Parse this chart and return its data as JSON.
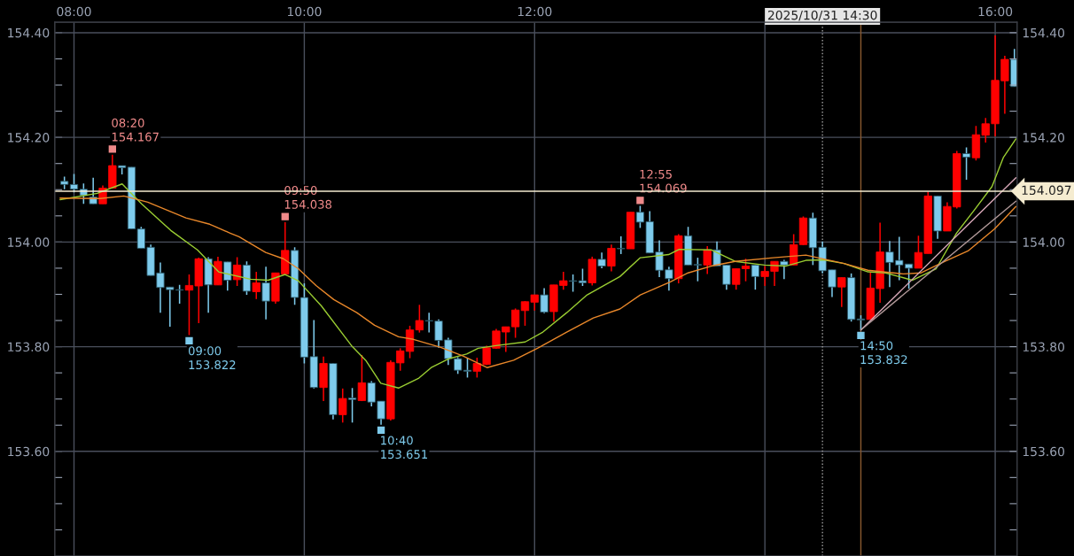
{
  "chart_data": {
    "type": "candlestick",
    "x": [
      7.9167,
      8,
      8.0833,
      8.1667,
      8.25,
      8.3333,
      8.4167,
      8.5,
      8.5833,
      8.6667,
      8.75,
      8.8333,
      8.9167,
      9,
      9.0833,
      9.1667,
      9.25,
      9.3333,
      9.4167,
      9.5,
      9.5833,
      9.6667,
      9.75,
      9.8333,
      9.9167,
      10,
      10.0833,
      10.1667,
      10.25,
      10.3333,
      10.4167,
      10.5,
      10.5833,
      10.6667,
      10.75,
      10.8333,
      10.9167,
      11,
      11.0833,
      11.1667,
      11.25,
      11.3333,
      11.4167,
      11.5,
      11.5833,
      11.6667,
      11.75,
      11.8333,
      11.9167,
      12,
      12.0833,
      12.1667,
      12.25,
      12.3333,
      12.4167,
      12.5,
      12.5833,
      12.6667,
      12.75,
      12.8333,
      12.9167,
      13,
      13.0833,
      13.1667,
      13.25,
      13.3333,
      13.4167,
      13.5,
      13.5833,
      13.6667,
      13.75,
      13.8333,
      13.9167,
      14,
      14.0833,
      14.1667,
      14.25,
      14.3333,
      14.4167,
      14.5,
      14.5833,
      14.6667,
      14.75,
      14.8333,
      14.9167,
      15,
      15.0833,
      15.1667,
      15.25,
      15.3333,
      15.4167,
      15.5,
      15.5833,
      15.6667,
      15.75,
      15.8333,
      15.9167,
      16,
      16.0833,
      16.1667
    ],
    "ohlc": [
      [
        154.116,
        154.125,
        154.101,
        154.11
      ],
      [
        154.11,
        154.13,
        154.095,
        154.101
      ],
      [
        154.101,
        154.112,
        154.073,
        154.089
      ],
      [
        154.086,
        154.123,
        154.073,
        154.073
      ],
      [
        154.073,
        154.108,
        154.073,
        154.103
      ],
      [
        154.103,
        154.167,
        154.103,
        154.146
      ],
      [
        154.146,
        154.146,
        154.129,
        154.142
      ],
      [
        154.143,
        154.143,
        154.025,
        154.025
      ],
      [
        154.025,
        154.029,
        153.988,
        153.988
      ],
      [
        153.99,
        153.995,
        153.936,
        153.936
      ],
      [
        153.941,
        153.961,
        153.865,
        153.913
      ],
      [
        153.914,
        153.914,
        153.838,
        153.909
      ],
      [
        153.909,
        153.918,
        153.882,
        153.908
      ],
      [
        153.908,
        153.938,
        153.822,
        153.917
      ],
      [
        153.916,
        153.97,
        153.845,
        153.968
      ],
      [
        153.968,
        153.971,
        153.865,
        153.918
      ],
      [
        153.918,
        153.972,
        153.918,
        153.963
      ],
      [
        153.962,
        153.962,
        153.907,
        153.927
      ],
      [
        153.928,
        153.971,
        153.916,
        153.956
      ],
      [
        153.956,
        153.963,
        153.899,
        153.906
      ],
      [
        153.905,
        153.943,
        153.891,
        153.922
      ],
      [
        153.922,
        153.953,
        153.852,
        153.887
      ],
      [
        153.887,
        153.941,
        153.882,
        153.941
      ],
      [
        153.939,
        154.038,
        153.939,
        153.984
      ],
      [
        153.984,
        153.99,
        153.88,
        153.894
      ],
      [
        153.894,
        153.921,
        153.768,
        153.78
      ],
      [
        153.781,
        153.851,
        153.72,
        153.722
      ],
      [
        153.722,
        153.781,
        153.696,
        153.768
      ],
      [
        153.768,
        153.769,
        153.661,
        153.67
      ],
      [
        153.67,
        153.72,
        153.655,
        153.701
      ],
      [
        153.702,
        153.721,
        153.655,
        153.699
      ],
      [
        153.697,
        153.784,
        153.696,
        153.731
      ],
      [
        153.731,
        153.734,
        153.686,
        153.694
      ],
      [
        153.696,
        153.696,
        153.651,
        153.662
      ],
      [
        153.662,
        153.774,
        153.659,
        153.77
      ],
      [
        153.769,
        153.797,
        153.754,
        153.792
      ],
      [
        153.791,
        153.84,
        153.778,
        153.832
      ],
      [
        153.832,
        153.88,
        153.827,
        153.85
      ],
      [
        153.85,
        153.865,
        153.827,
        153.849
      ],
      [
        153.849,
        153.852,
        153.798,
        153.812
      ],
      [
        153.813,
        153.817,
        153.765,
        153.777
      ],
      [
        153.777,
        153.78,
        153.748,
        153.755
      ],
      [
        153.755,
        153.779,
        153.741,
        153.753
      ],
      [
        153.753,
        153.779,
        153.741,
        153.768
      ],
      [
        153.766,
        153.802,
        153.765,
        153.798
      ],
      [
        153.797,
        153.834,
        153.796,
        153.83
      ],
      [
        153.828,
        153.838,
        153.79,
        153.838
      ],
      [
        153.838,
        153.873,
        153.817,
        153.87
      ],
      [
        153.869,
        153.887,
        153.84,
        153.886
      ],
      [
        153.885,
        153.899,
        153.869,
        153.899
      ],
      [
        153.899,
        153.912,
        153.864,
        153.866
      ],
      [
        153.867,
        153.918,
        153.848,
        153.918
      ],
      [
        153.917,
        153.943,
        153.909,
        153.926
      ],
      [
        153.926,
        153.938,
        153.905,
        153.925
      ],
      [
        153.926,
        153.949,
        153.916,
        153.922
      ],
      [
        153.922,
        153.972,
        153.917,
        153.967
      ],
      [
        153.967,
        153.98,
        153.95,
        153.954
      ],
      [
        153.954,
        153.995,
        153.944,
        153.988
      ],
      [
        153.988,
        154.011,
        153.977,
        153.987
      ],
      [
        153.987,
        154.057,
        153.987,
        154.057
      ],
      [
        154.057,
        154.069,
        154.027,
        154.038
      ],
      [
        154.039,
        154.059,
        153.979,
        153.979
      ],
      [
        153.981,
        154.003,
        153.933,
        153.946
      ],
      [
        153.947,
        153.953,
        153.907,
        153.93
      ],
      [
        153.93,
        154.015,
        153.921,
        154.012
      ],
      [
        154.012,
        154.029,
        153.956,
        153.956
      ],
      [
        153.957,
        153.97,
        153.925,
        153.956
      ],
      [
        153.956,
        153.992,
        153.939,
        153.985
      ],
      [
        153.985,
        154.001,
        153.954,
        153.954
      ],
      [
        153.956,
        153.956,
        153.909,
        153.919
      ],
      [
        153.919,
        153.949,
        153.909,
        153.949
      ],
      [
        153.949,
        153.968,
        153.925,
        153.954
      ],
      [
        153.956,
        153.956,
        153.909,
        153.934
      ],
      [
        153.934,
        153.954,
        153.916,
        153.944
      ],
      [
        153.944,
        153.963,
        153.916,
        153.963
      ],
      [
        153.963,
        153.966,
        153.929,
        153.956
      ],
      [
        153.956,
        154.015,
        153.956,
        153.995
      ],
      [
        153.995,
        154.049,
        153.994,
        154.046
      ],
      [
        154.046,
        154.056,
        153.956,
        153.989
      ],
      [
        153.99,
        154.001,
        153.94,
        153.945
      ],
      [
        153.947,
        153.947,
        153.895,
        153.914
      ],
      [
        153.914,
        153.932,
        153.876,
        153.932
      ],
      [
        153.932,
        153.94,
        153.848,
        153.852
      ],
      [
        153.853,
        153.86,
        153.832,
        153.851
      ],
      [
        153.852,
        153.942,
        153.852,
        153.912
      ],
      [
        153.911,
        154.037,
        153.884,
        153.981
      ],
      [
        153.981,
        154.002,
        153.914,
        153.961
      ],
      [
        153.965,
        154.01,
        153.927,
        153.956
      ],
      [
        153.958,
        153.958,
        153.911,
        153.95
      ],
      [
        153.95,
        154.012,
        153.95,
        153.98
      ],
      [
        153.978,
        154.096,
        153.978,
        154.088
      ],
      [
        154.088,
        154.088,
        154.006,
        154.021
      ],
      [
        154.021,
        154.076,
        154.021,
        154.068
      ],
      [
        154.067,
        154.174,
        154.064,
        154.169
      ],
      [
        154.169,
        154.181,
        154.119,
        154.162
      ],
      [
        154.161,
        154.222,
        154.156,
        154.205
      ],
      [
        154.204,
        154.237,
        154.19,
        154.226
      ],
      [
        154.226,
        154.395,
        154.202,
        154.309
      ],
      [
        154.308,
        154.356,
        154.245,
        154.349
      ],
      [
        154.349,
        154.369,
        154.297,
        154.297
      ]
    ],
    "colors": [
      "#7ecbec",
      "#7ecbec",
      "#7ecbec",
      "#7ecbec",
      "#ff0000",
      "#ff0000",
      "#7ecbec",
      "#7ecbec",
      "#7ecbec",
      "#7ecbec",
      "#7ecbec",
      "#7ecbec",
      "#7ecbec",
      "#ff0000",
      "#ff0000",
      "#7ecbec",
      "#ff0000",
      "#7ecbec",
      "#ff0000",
      "#7ecbec",
      "#ff0000",
      "#7ecbec",
      "#ff0000",
      "#ff0000",
      "#7ecbec",
      "#7ecbec",
      "#7ecbec",
      "#ff0000",
      "#7ecbec",
      "#ff0000",
      "#7ecbec",
      "#ff0000",
      "#7ecbec",
      "#7ecbec",
      "#ff0000",
      "#ff0000",
      "#ff0000",
      "#ff0000",
      "#7ecbec",
      "#7ecbec",
      "#7ecbec",
      "#7ecbec",
      "#7ecbec",
      "#ff0000",
      "#ff0000",
      "#ff0000",
      "#ff0000",
      "#ff0000",
      "#ff0000",
      "#ff0000",
      "#7ecbec",
      "#ff0000",
      "#ff0000",
      "#7ecbec",
      "#7ecbec",
      "#ff0000",
      "#7ecbec",
      "#ff0000",
      "#7ecbec",
      "#ff0000",
      "#7ecbec",
      "#7ecbec",
      "#7ecbec",
      "#7ecbec",
      "#ff0000",
      "#7ecbec",
      "#7ecbec",
      "#ff0000",
      "#7ecbec",
      "#7ecbec",
      "#ff0000",
      "#ff0000",
      "#7ecbec",
      "#ff0000",
      "#ff0000",
      "#7ecbec",
      "#ff0000",
      "#ff0000",
      "#7ecbec",
      "#7ecbec",
      "#7ecbec",
      "#ff0000",
      "#7ecbec",
      "#7ecbec",
      "#ff0000",
      "#ff0000",
      "#7ecbec",
      "#7ecbec",
      "#7ecbec",
      "#ff0000",
      "#ff0000",
      "#7ecbec",
      "#ff0000",
      "#ff0000",
      "#7ecbec",
      "#ff0000",
      "#ff0000",
      "#ff0000",
      "#ff0000",
      "#7ecbec"
    ],
    "series": [
      {
        "type": "line",
        "color": "#9acd32",
        "x": [
          7.879,
          8.202,
          8.418,
          8.587,
          8.841,
          9.072,
          9.256,
          9.533,
          9.687,
          9.833,
          9.948,
          10.148,
          10.41,
          10.533,
          10.664,
          10.818,
          10.995,
          11.102,
          11.256,
          11.41,
          11.51,
          11.664,
          11.918,
          12.072,
          12.279,
          12.456,
          12.741,
          12.918,
          13.164,
          13.256,
          13.533,
          13.741,
          13.995,
          14.179,
          14.356,
          14.51,
          14.687,
          14.895,
          15.048,
          15.279,
          15.487,
          15.664,
          15.818,
          15.972,
          16.072,
          16.18
        ],
        "values": [
          154.081,
          154.093,
          154.111,
          154.073,
          154.022,
          153.985,
          153.943,
          153.929,
          153.927,
          153.938,
          153.926,
          153.878,
          153.802,
          153.774,
          153.73,
          153.721,
          153.74,
          153.76,
          153.777,
          153.786,
          153.797,
          153.802,
          153.809,
          153.828,
          153.865,
          153.899,
          153.934,
          153.97,
          153.976,
          153.986,
          153.985,
          153.963,
          153.956,
          153.954,
          153.965,
          153.966,
          153.959,
          153.943,
          153.941,
          153.927,
          153.949,
          154.017,
          154.061,
          154.106,
          154.162,
          154.197
        ]
      },
      {
        "type": "line",
        "color": "#e8872a",
        "x": [
          7.879,
          8.225,
          8.433,
          8.641,
          8.972,
          9.179,
          9.356,
          9.433,
          9.664,
          9.818,
          9.948,
          10.102,
          10.256,
          10.456,
          10.61,
          10.818,
          10.948,
          11.179,
          11.379,
          11.587,
          11.818,
          12.025,
          12.279,
          12.51,
          12.741,
          12.918,
          13.179,
          13.333,
          13.533,
          13.741,
          14.072,
          14.356,
          14.687,
          14.895,
          15.202,
          15.356,
          15.564,
          15.764,
          15.995,
          16.18
        ],
        "values": [
          154.084,
          154.083,
          154.088,
          154.076,
          154.046,
          154.034,
          154.017,
          154.01,
          153.98,
          153.968,
          153.949,
          153.917,
          153.89,
          153.865,
          153.841,
          153.819,
          153.814,
          153.799,
          153.782,
          153.76,
          153.774,
          153.797,
          153.828,
          153.855,
          153.872,
          153.899,
          153.924,
          153.941,
          153.954,
          153.963,
          153.97,
          153.975,
          153.959,
          153.946,
          153.939,
          153.941,
          153.963,
          153.983,
          154.025,
          154.068
        ]
      },
      {
        "type": "line",
        "color": "#d8a8b8",
        "x": [
          14.8333,
          16.18
        ],
        "values": [
          153.832,
          154.123
        ]
      },
      {
        "type": "line",
        "color": "#b09898",
        "x": [
          14.8333,
          16.18
        ],
        "values": [
          153.832,
          154.078
        ]
      }
    ],
    "xlim": [
      7.833,
      16.19
    ],
    "xticks": [
      {
        "value": 8,
        "label": "08:00"
      },
      {
        "value": 10,
        "label": "10:00"
      },
      {
        "value": 12,
        "label": "12:00"
      },
      {
        "value": 14,
        "label": null
      },
      {
        "value": 16,
        "label": "16:00"
      }
    ],
    "ylim": [
      153.4,
      154.42
    ],
    "yticks": [
      {
        "value": 153.45,
        "label": null
      },
      {
        "value": 153.5,
        "label": null
      },
      {
        "value": 153.55,
        "label": null
      },
      {
        "value": 153.6,
        "label": "153.60"
      },
      {
        "value": 153.65,
        "label": null
      },
      {
        "value": 153.7,
        "label": null
      },
      {
        "value": 153.75,
        "label": null
      },
      {
        "value": 153.8,
        "label": "153.80"
      },
      {
        "value": 153.85,
        "label": null
      },
      {
        "value": 153.9,
        "label": null
      },
      {
        "value": 153.95,
        "label": null
      },
      {
        "value": 154.0,
        "label": "154.00"
      },
      {
        "value": 154.05,
        "label": null
      },
      {
        "value": 154.1,
        "label": null
      },
      {
        "value": 154.15,
        "label": null
      },
      {
        "value": 154.2,
        "label": "154.20"
      },
      {
        "value": 154.25,
        "label": null
      },
      {
        "value": 154.3,
        "label": null
      },
      {
        "value": 154.35,
        "label": null
      },
      {
        "value": 154.4,
        "label": "154.40"
      }
    ],
    "y2lim": [
      153.4,
      154.42
    ],
    "y2ticks": [
      {
        "value": 153.45,
        "label": null
      },
      {
        "value": 153.5,
        "label": null
      },
      {
        "value": 153.55,
        "label": null
      },
      {
        "value": 153.6,
        "label": "153.60"
      },
      {
        "value": 153.65,
        "label": null
      },
      {
        "value": 153.7,
        "label": null
      },
      {
        "value": 153.75,
        "label": null
      },
      {
        "value": 153.8,
        "label": "153.80"
      },
      {
        "value": 153.85,
        "label": null
      },
      {
        "value": 153.9,
        "label": null
      },
      {
        "value": 153.95,
        "label": null
      },
      {
        "value": 154.0,
        "label": "154.00"
      },
      {
        "value": 154.05,
        "label": null
      },
      {
        "value": 154.1,
        "label": null
      },
      {
        "value": 154.15,
        "label": null
      },
      {
        "value": 154.2,
        "label": "154.20"
      },
      {
        "value": 154.25,
        "label": null
      },
      {
        "value": 154.3,
        "label": null
      },
      {
        "value": 154.35,
        "label": null
      },
      {
        "value": 154.4,
        "label": "154.40"
      }
    ],
    "grid": true,
    "ref_lines": [
      {
        "axis": "y2",
        "value": 154.097,
        "label": "154.097",
        "color": "#f5ecd0"
      },
      {
        "axis": "x",
        "value": 14.5,
        "label": "2025/10/31 14:30",
        "color": "#a0a0a0",
        "line_style": "dotted"
      },
      {
        "axis": "x",
        "value": 14.8333,
        "color": "#8a5a30"
      }
    ],
    "annotations": [
      {
        "text": "08:20\n154.167",
        "x": 8.3333,
        "y": 154.167
      },
      {
        "text": "09:00\n153.822",
        "x": 9,
        "y": 153.822
      },
      {
        "text": "09:50\n154.038",
        "x": 9.8333,
        "y": 154.038
      },
      {
        "text": "10:40\n153.651",
        "x": 10.6667,
        "y": 153.651
      },
      {
        "text": "12:55\n154.069",
        "x": 12.9167,
        "y": 154.069
      },
      {
        "text": "14:50\n153.832",
        "x": 14.8333,
        "y": 153.832
      }
    ]
  }
}
